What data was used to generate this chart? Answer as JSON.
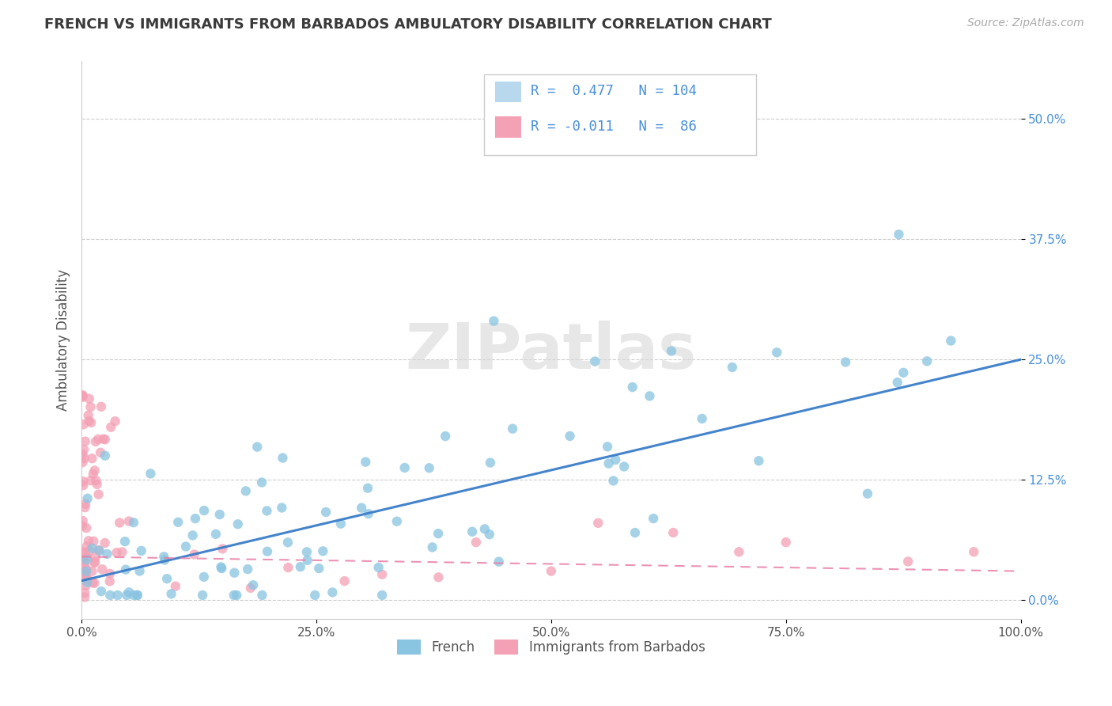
{
  "title": "FRENCH VS IMMIGRANTS FROM BARBADOS AMBULATORY DISABILITY CORRELATION CHART",
  "source_text": "Source: ZipAtlas.com",
  "ylabel": "Ambulatory Disability",
  "R_french": 0.477,
  "N_french": 104,
  "R_barbados": -0.011,
  "N_barbados": 86,
  "french_color": "#89c4e1",
  "barbados_color": "#f4a0b5",
  "french_line_color": "#3a7dc9",
  "barbados_line_color": "#e87fa8",
  "watermark_text": "ZIPatlas",
  "xlim": [
    0.0,
    1.0
  ],
  "ylim": [
    -0.02,
    0.56
  ],
  "yticks": [
    0.0,
    0.125,
    0.25,
    0.375,
    0.5
  ],
  "ytick_labels": [
    "0.0%",
    "12.5%",
    "25.0%",
    "37.5%",
    "50.0%"
  ],
  "xticks": [
    0.0,
    0.25,
    0.5,
    0.75,
    1.0
  ],
  "xtick_labels": [
    "0.0%",
    "25.0%",
    "50.0%",
    "75.0%",
    "100.0%"
  ],
  "french_trend_x0": 0.0,
  "french_trend_y0": 0.02,
  "french_trend_x1": 1.0,
  "french_trend_y1": 0.25,
  "barbados_trend_x0": 0.0,
  "barbados_trend_y0": 0.045,
  "barbados_trend_x1": 1.0,
  "barbados_trend_y1": 0.03
}
